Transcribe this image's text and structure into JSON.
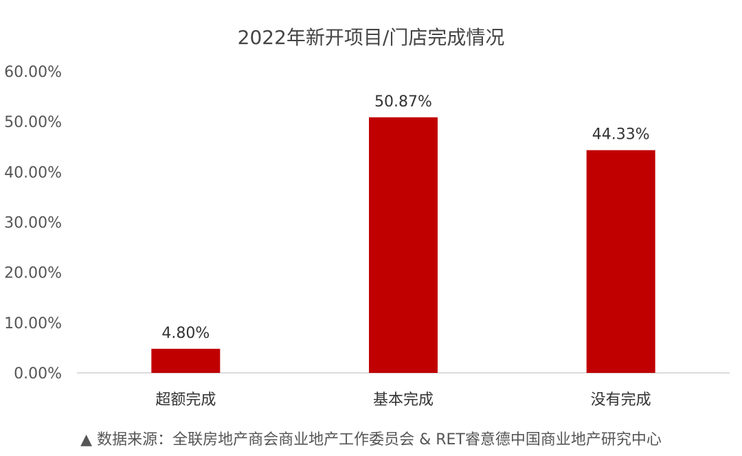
{
  "chart_data": {
    "type": "bar",
    "title": "2022年新开项目/门店完成情况",
    "categories": [
      "超额完成",
      "基本完成",
      "没有完成"
    ],
    "values": [
      4.8,
      50.87,
      44.33
    ],
    "data_labels": [
      "4.80%",
      "50.87%",
      "44.33%"
    ],
    "y_ticks": [
      "0.00%",
      "10.00%",
      "20.00%",
      "30.00%",
      "40.00%",
      "50.00%",
      "60.00%"
    ],
    "ylim": [
      0,
      60
    ],
    "unit": "%",
    "grid": false,
    "legend": "none",
    "bar_color": "#C00000"
  },
  "source_note": "▲ 数据来源：全联房地产商会商业地产工作委员会 & RET睿意德中国商业地产研究中心"
}
